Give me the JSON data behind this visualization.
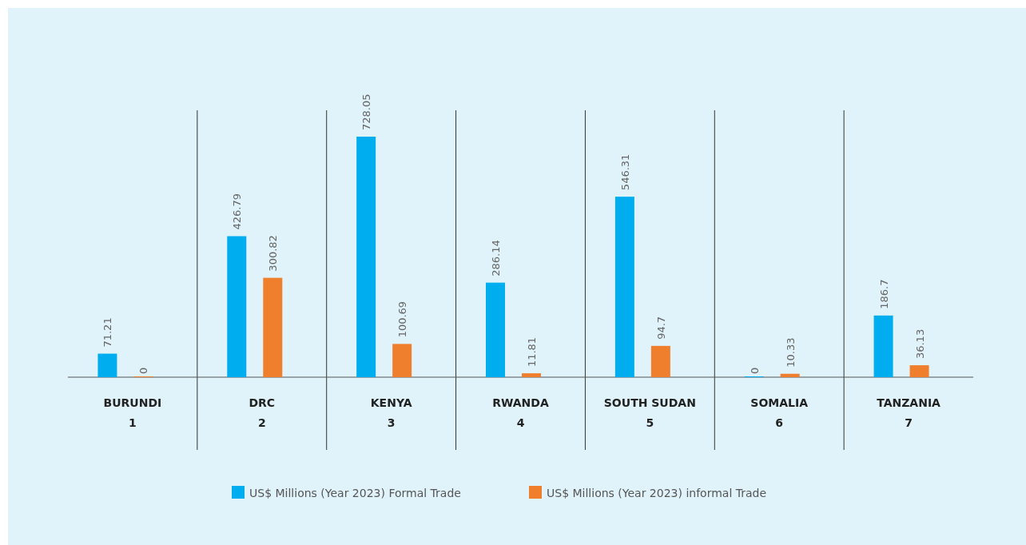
{
  "chart_data": {
    "type": "bar",
    "categories": [
      "BURUNDI\n1",
      "DRC\n2",
      "KENYA\n3",
      "RWANDA\n4",
      "SOUTH SUDAN\n5",
      "SOMALIA\n6",
      "TANZANIA\n7"
    ],
    "series": [
      {
        "name": "US$ Millions (Year 2023) Formal Trade",
        "color": "#00aeef",
        "values": [
          71.21,
          426.79,
          728.05,
          286.14,
          546.31,
          0,
          186.7
        ]
      },
      {
        "name": "US$ Millions (Year 2023) informal Trade",
        "color": "#f07f2d",
        "values": [
          0,
          300.82,
          100.69,
          11.81,
          94.7,
          10.33,
          36.13
        ]
      }
    ],
    "relative": false,
    "data_labels": true,
    "legend": "bottom"
  }
}
